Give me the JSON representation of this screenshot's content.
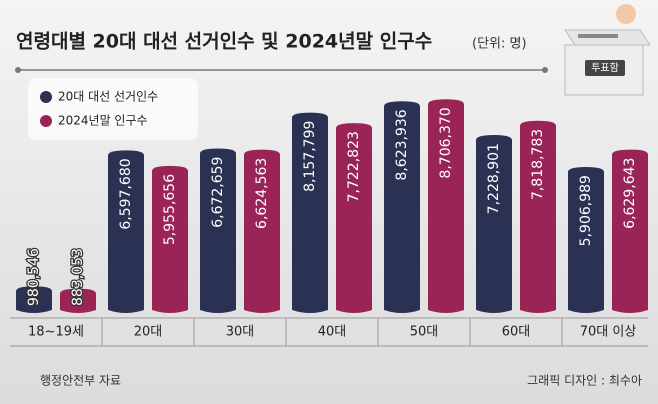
{
  "chart_data": {
    "type": "bar",
    "title": "연령대별 20대 대선 선거인수 및 2024년말 인구수",
    "subtitle": "(단위: 명)",
    "ballot_box_label": "투표함",
    "categories": [
      "18~19세",
      "20대",
      "30대",
      "40대",
      "50대",
      "60대",
      "70대 이상"
    ],
    "series": [
      {
        "name": "20대 대선 선거인수",
        "color": "#2b3153",
        "values": [
          980546,
          6597680,
          6672659,
          8157799,
          8623936,
          7228901,
          5906989
        ],
        "value_labels": [
          "980,546",
          "6,597,680",
          "6,672,659",
          "8,157,799",
          "8,623,936",
          "7,228,901",
          "5,906,989"
        ]
      },
      {
        "name": "2024년말 인구수",
        "color": "#9b2457",
        "values": [
          883053,
          5955656,
          6624563,
          7722823,
          8706370,
          7818783,
          6629643
        ],
        "value_labels": [
          "883,053",
          "5,955,656",
          "6,624,563",
          "7,722,823",
          "8,706,370",
          "7,818,783",
          "6,629,643"
        ]
      }
    ],
    "source": "행정안전부 자료",
    "credit": "그래픽 디자인 : 최수아"
  }
}
